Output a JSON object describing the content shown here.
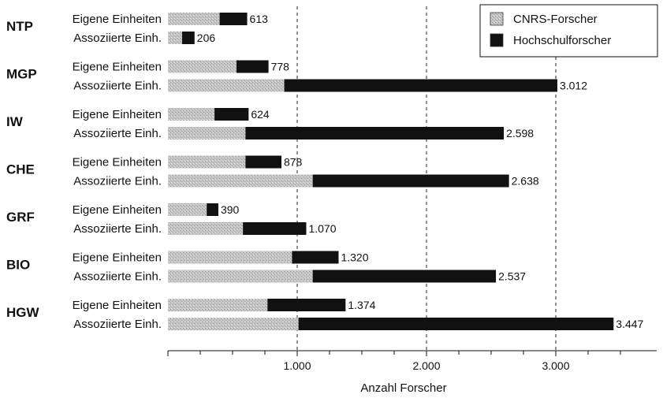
{
  "chart_data": {
    "type": "bar",
    "orientation": "horizontal",
    "stacked": true,
    "xlabel": "Anzahl Forscher",
    "xlim": [
      0,
      3700
    ],
    "xticks": [
      1000,
      2000,
      3000
    ],
    "xtick_labels": [
      "1.000",
      "2.000",
      "3.000"
    ],
    "grid": "vertical dashed at 1.000, 2.000, 3.000",
    "legend_position": "top-right",
    "colors": {
      "CNRS-Forscher": "#b9b9b9",
      "Hochschulforscher": "#111111"
    },
    "row_labels": [
      "Eigene Einheiten",
      "Assoziierte Einh."
    ],
    "series": [
      {
        "name": "CNRS-Forscher"
      },
      {
        "name": "Hochschulforscher"
      }
    ],
    "groups": [
      {
        "name": "NTP",
        "rows": [
          {
            "label": "Eigene Einheiten",
            "cnrs": 400,
            "hochschul": 213,
            "total_label": "613"
          },
          {
            "label": "Assoziierte Einh.",
            "cnrs": 110,
            "hochschul": 96,
            "total_label": "206"
          }
        ]
      },
      {
        "name": "MGP",
        "rows": [
          {
            "label": "Eigene Einheiten",
            "cnrs": 530,
            "hochschul": 248,
            "total_label": "778"
          },
          {
            "label": "Assoziierte Einh.",
            "cnrs": 900,
            "hochschul": 2112,
            "total_label": "3.012"
          }
        ]
      },
      {
        "name": "IW",
        "rows": [
          {
            "label": "Eigene Einheiten",
            "cnrs": 360,
            "hochschul": 264,
            "total_label": "624"
          },
          {
            "label": "Assoziierte Einh.",
            "cnrs": 600,
            "hochschul": 1998,
            "total_label": "2.598"
          }
        ]
      },
      {
        "name": "CHE",
        "rows": [
          {
            "label": "Eigene Einheiten",
            "cnrs": 600,
            "hochschul": 278,
            "total_label": "878"
          },
          {
            "label": "Assoziierte Einh.",
            "cnrs": 1120,
            "hochschul": 1518,
            "total_label": "2.638"
          }
        ]
      },
      {
        "name": "GRF",
        "rows": [
          {
            "label": "Eigene Einheiten",
            "cnrs": 300,
            "hochschul": 90,
            "total_label": "390"
          },
          {
            "label": "Assoziierte Einh.",
            "cnrs": 580,
            "hochschul": 490,
            "total_label": "1.070"
          }
        ]
      },
      {
        "name": "BIO",
        "rows": [
          {
            "label": "Eigene Einheiten",
            "cnrs": 960,
            "hochschul": 360,
            "total_label": "1.320"
          },
          {
            "label": "Assoziierte Einh.",
            "cnrs": 1120,
            "hochschul": 1417,
            "total_label": "2.537"
          }
        ]
      },
      {
        "name": "HGW",
        "rows": [
          {
            "label": "Eigene Einheiten",
            "cnrs": 770,
            "hochschul": 604,
            "total_label": "1.374"
          },
          {
            "label": "Assoziierte Einh.",
            "cnrs": 1010,
            "hochschul": 2437,
            "total_label": "3.447"
          }
        ]
      }
    ]
  }
}
